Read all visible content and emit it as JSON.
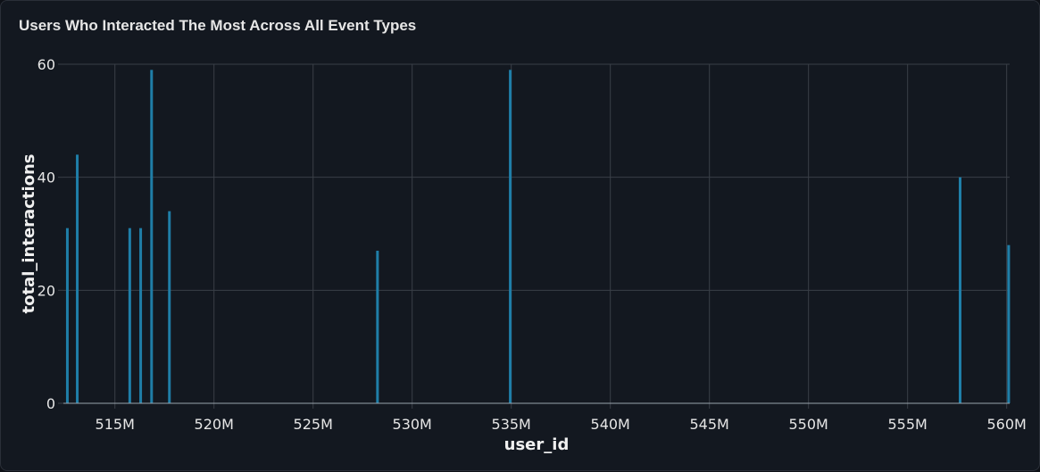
{
  "chart_data": {
    "type": "bar",
    "title": "Users Who Interacted The Most Across All Event Types",
    "xlabel": "user_id",
    "ylabel": "total_interactions",
    "xlim": [
      512400000,
      560150000
    ],
    "ylim": [
      0,
      60
    ],
    "x_ticks": [
      515000000,
      520000000,
      525000000,
      530000000,
      535000000,
      540000000,
      545000000,
      550000000,
      555000000,
      560000000
    ],
    "x_tick_labels": [
      "515M",
      "520M",
      "525M",
      "530M",
      "535M",
      "540M",
      "545M",
      "550M",
      "555M",
      "560M"
    ],
    "y_ticks": [
      0,
      20,
      40,
      60
    ],
    "y_tick_labels": [
      "0",
      "20",
      "40",
      "60"
    ],
    "grid": true,
    "bar_color": "#1f7ea8",
    "series": [
      {
        "x": [
          512600000,
          513100000,
          515750000,
          516300000,
          516850000,
          517750000,
          528250000,
          534950000,
          557650000,
          560100000
        ],
        "values": [
          31,
          44,
          31,
          31,
          59,
          34,
          27,
          59,
          40,
          28
        ]
      }
    ]
  }
}
